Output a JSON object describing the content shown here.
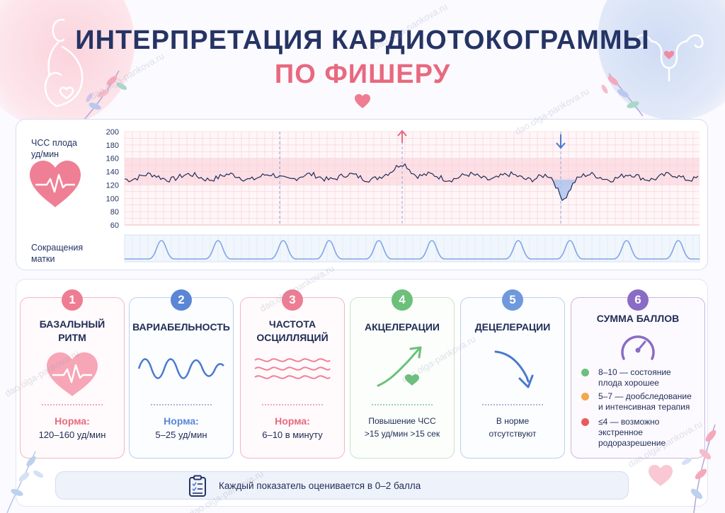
{
  "header": {
    "title_line1": "ИНТЕРПРЕТАЦИЯ КАРДИОТОКОГРАММЫ",
    "title_line2": "ПО ФИШЕРУ"
  },
  "ctg": {
    "fhr_label": "ЧСС плода\nуд/мин",
    "fhr_label_line1": "ЧСС плода",
    "fhr_label_line2": "уд/мин",
    "uc_label_line1": "Сокращения",
    "uc_label_line2": "матки",
    "y_ticks": [
      "200",
      "180",
      "160",
      "140",
      "120",
      "100",
      "80",
      "60"
    ]
  },
  "cards": [
    {
      "num": "1",
      "title_line1": "БАЗАЛЬНЫЙ",
      "title_line2": "РИТМ",
      "norm_label": "Норма:",
      "norm_value": "120–160 уд/мин"
    },
    {
      "num": "2",
      "title_line1": "ВАРИАБЕЛЬНОСТЬ",
      "title_line2": "",
      "norm_label": "Норма:",
      "norm_value": "5–25 уд/мин"
    },
    {
      "num": "3",
      "title_line1": "ЧАСТОТА",
      "title_line2": "ОСЦИЛЛЯЦИЙ",
      "norm_label": "Норма:",
      "norm_value": "6–10 в минуту"
    },
    {
      "num": "4",
      "title_line1": "АКЦЕЛЕРАЦИИ",
      "text_line1": "Повышение ЧСС",
      "text_line2": ">15 уд/мин >15 сек"
    },
    {
      "num": "5",
      "title_line1": "ДЕЦЕЛЕРАЦИИ",
      "text_line1": "В норме",
      "text_line2": "отсутствуют"
    },
    {
      "num": "6",
      "title_line1": "СУММА БАЛЛОВ",
      "legend": [
        {
          "line1": "8–10 — состояние",
          "line2": "плода хорошее",
          "color": "#6cc07a"
        },
        {
          "line1": "5–7 — дообследование",
          "line2": "и интенсивная терапия",
          "color": "#f3a64d"
        },
        {
          "line1": "≤4 — возможно",
          "line2": "экстренное",
          "line3": "родоразрешение",
          "color": "#ea5a5a"
        }
      ]
    }
  ],
  "footer": {
    "text": "Каждый показатель оценивается в 0–2 балла"
  },
  "watermark": "dao.olga-pankova.ru",
  "colors": {
    "navy": "#253464",
    "pink": "#e8697f",
    "blue": "#5b86d6",
    "green": "#6cc07a",
    "violet": "#8a6cc6"
  }
}
